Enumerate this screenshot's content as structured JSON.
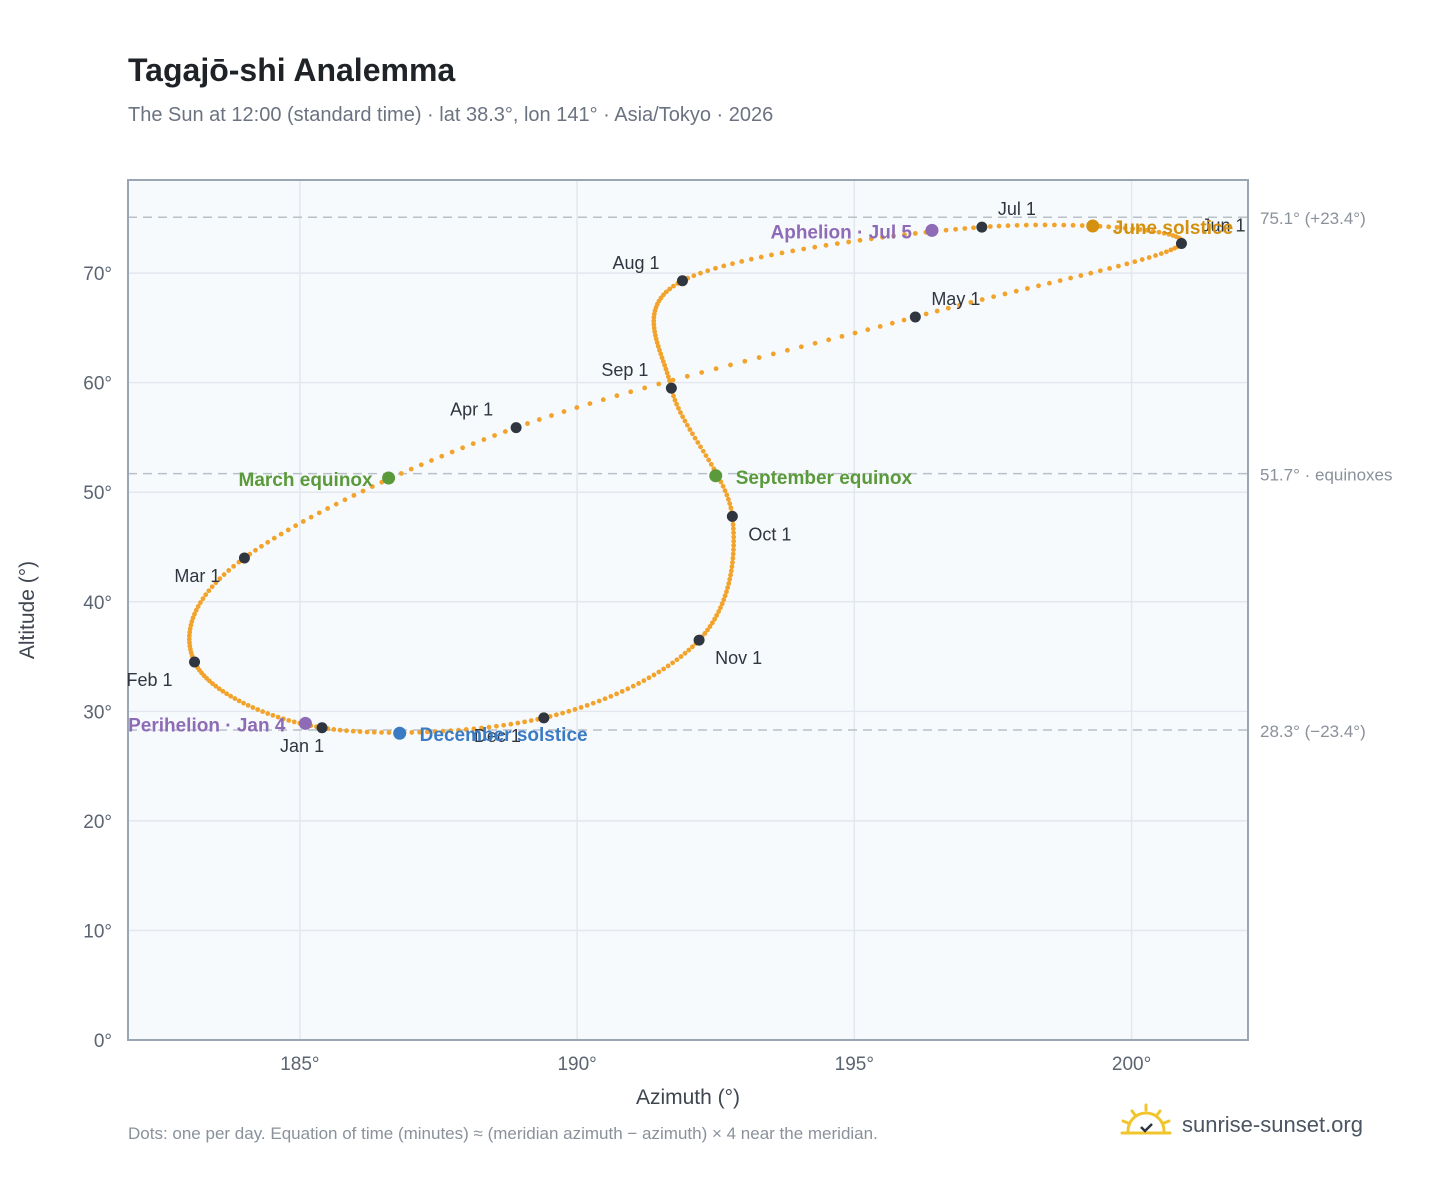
{
  "header": {
    "title": "Tagajō-shi Analemma",
    "subtitle": "The Sun at 12:00 (standard time) · lat 38.3°, lon 141° · Asia/Tokyo · 2026"
  },
  "footer": {
    "note": "Dots: one per day. Equation of time (minutes) ≈ (meridian azimuth − azimuth) × 4 near the meridian.",
    "brand": "sunrise-sunset.org",
    "brand_icon": "sun-logo-icon"
  },
  "colors": {
    "curve": "#f2a32b",
    "month_marker": "#2f3640",
    "equinox": "#5a9a3a",
    "june_solstice": "#d4910f",
    "december_solstice": "#3b7bc4",
    "apsis": "#8e6bb7",
    "plot_bg": "#f7fafd",
    "grid": "#e3e8ee",
    "ref_line": "#b8c0c8"
  },
  "chart_data": {
    "type": "scatter",
    "xlabel": "Azimuth (°)",
    "ylabel": "Altitude (°)",
    "xlim": [
      181.9,
      202.1
    ],
    "ylim": [
      0,
      78.5
    ],
    "xticks": [
      185,
      190,
      195,
      200
    ],
    "xtick_labels": [
      "185°",
      "190°",
      "195°",
      "200°"
    ],
    "yticks": [
      0,
      10,
      20,
      30,
      40,
      50,
      60,
      70
    ],
    "ytick_labels": [
      "0°",
      "10°",
      "20°",
      "30°",
      "40°",
      "50°",
      "60°",
      "70°"
    ],
    "grid": true,
    "reference_lines": [
      {
        "y": 75.1,
        "label": "75.1° (+23.4°)"
      },
      {
        "y": 51.7,
        "label": "51.7° · equinoxes"
      },
      {
        "y": 28.3,
        "label": "28.3° (−23.4°)"
      }
    ],
    "month_markers": [
      {
        "label": "Jan 1",
        "x": 185.4,
        "y": 28.5
      },
      {
        "label": "Feb 1",
        "x": 183.1,
        "y": 34.5
      },
      {
        "label": "Mar 1",
        "x": 184.0,
        "y": 44.0
      },
      {
        "label": "Apr 1",
        "x": 188.9,
        "y": 55.9
      },
      {
        "label": "May 1",
        "x": 196.1,
        "y": 66.0
      },
      {
        "label": "Jun 1",
        "x": 200.9,
        "y": 72.7
      },
      {
        "label": "Jul 1",
        "x": 197.3,
        "y": 74.2
      },
      {
        "label": "Aug 1",
        "x": 191.9,
        "y": 69.3
      },
      {
        "label": "Sep 1",
        "x": 191.7,
        "y": 59.5
      },
      {
        "label": "Oct 1",
        "x": 192.8,
        "y": 47.8
      },
      {
        "label": "Nov 1",
        "x": 192.2,
        "y": 36.5
      },
      {
        "label": "Dec 1",
        "x": 189.4,
        "y": 29.4
      }
    ],
    "events": [
      {
        "label": "March equinox",
        "x": 186.6,
        "y": 51.3,
        "color_key": "equinox"
      },
      {
        "label": "June solstice",
        "x": 199.3,
        "y": 74.3,
        "color_key": "june_solstice"
      },
      {
        "label": "September equinox",
        "x": 192.5,
        "y": 51.5,
        "color_key": "equinox"
      },
      {
        "label": "December solstice",
        "x": 186.8,
        "y": 28.0,
        "color_key": "december_solstice"
      },
      {
        "label": "Perihelion · Jan 4",
        "x": 185.1,
        "y": 28.9,
        "color_key": "apsis"
      },
      {
        "label": "Aphelion · Jul 5",
        "x": 196.4,
        "y": 73.9,
        "color_key": "apsis"
      }
    ]
  }
}
